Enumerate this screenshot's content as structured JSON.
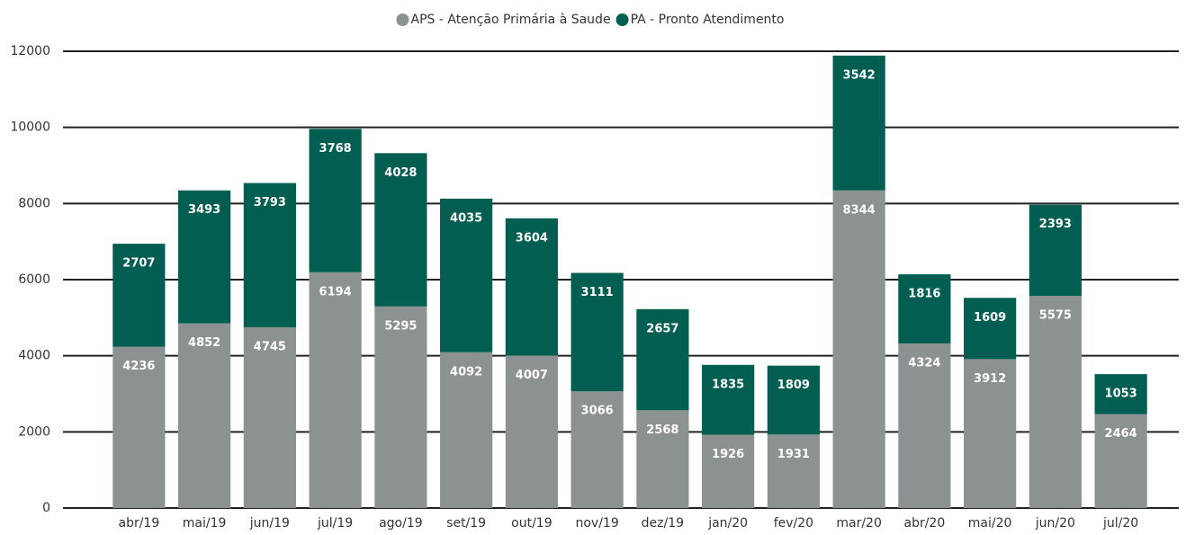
{
  "chart_data": {
    "type": "stacked_bar",
    "categories": [
      "abr/19",
      "mai/19",
      "jun/19",
      "jul/19",
      "ago/19",
      "set/19",
      "out/19",
      "nov/19",
      "dez/19",
      "jan/20",
      "fev/20",
      "mar/20",
      "abr/20",
      "mai/20",
      "jun/20",
      "jul/20"
    ],
    "series": [
      {
        "name": "APS - Atenção Primária à Saude",
        "color": "#8c9291",
        "values": [
          4236,
          4852,
          4745,
          6194,
          5295,
          4092,
          4007,
          3066,
          2568,
          1926,
          1931,
          8344,
          4324,
          3912,
          5575,
          2464
        ]
      },
      {
        "name": "PA - Pronto Atendimento",
        "color": "#035e52",
        "values": [
          2707,
          3493,
          3793,
          3768,
          4028,
          4035,
          3604,
          3111,
          2657,
          1835,
          1809,
          3542,
          1816,
          1609,
          2393,
          1053
        ]
      }
    ],
    "ylim": [
      0,
      12000
    ],
    "yticks": [
      0,
      2000,
      4000,
      6000,
      8000,
      10000,
      12000
    ],
    "grid": true,
    "legend": "top"
  }
}
